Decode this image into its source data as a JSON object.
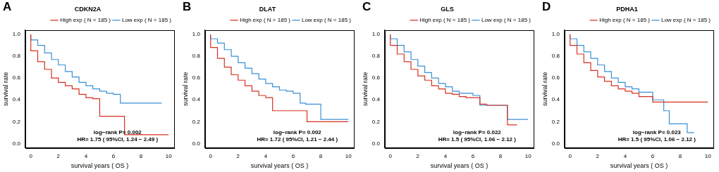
{
  "chart_data": [
    {
      "type": "line",
      "panel": "A",
      "title": "CDKN2A",
      "x_label": "survival years ( OS )",
      "y_label": "survival rate",
      "xlim": [
        -0.4,
        10.4
      ],
      "xticks": [
        0,
        2,
        4,
        6,
        8,
        10
      ],
      "ylim": [
        -0.04,
        1.04
      ],
      "yticks": [
        {
          "value": 0,
          "label": "0.0"
        },
        0.2,
        0.4,
        0.6,
        0.8,
        {
          "value": 1,
          "label": "1.0"
        }
      ],
      "grid": false,
      "legend": "upper right",
      "annotations": [
        "log−rank P= 0.002",
        "HR= 1.75 ( 95%CI, 1.24 − 2.49 )"
      ],
      "series": [
        {
          "name": "High exp ( N = 185 )",
          "color": "#d7301f",
          "x": [
            0,
            0.5,
            1,
            1.5,
            2,
            2.5,
            3,
            3.5,
            4,
            4.5,
            5,
            6.8,
            9.5,
            10
          ],
          "values": [
            1,
            0.85,
            0.75,
            0.68,
            0.6,
            0.56,
            0.53,
            0.5,
            0.45,
            0.42,
            0.41,
            0.25,
            0.08,
            0.08
          ]
        },
        {
          "name": "Low exp ( N = 185 )",
          "color": "#3a8fd6",
          "x": [
            0,
            0.5,
            1,
            1.5,
            2,
            2.5,
            3,
            3.5,
            4,
            4.5,
            5,
            5.5,
            6,
            6.5,
            6.8,
            9.5
          ],
          "values": [
            1,
            0.95,
            0.9,
            0.83,
            0.77,
            0.72,
            0.66,
            0.61,
            0.56,
            0.53,
            0.5,
            0.48,
            0.46,
            0.45,
            0.37,
            0.37
          ]
        }
      ]
    },
    {
      "type": "line",
      "panel": "B",
      "title": "DLAT",
      "x_label": "survival years ( OS )",
      "y_label": "survival rate",
      "xlim": [
        -0.4,
        10.4
      ],
      "xticks": [
        0,
        2,
        4,
        6,
        8,
        10
      ],
      "ylim": [
        -0.04,
        1.04
      ],
      "yticks": [
        {
          "value": 0,
          "label": "0.0"
        },
        0.2,
        0.4,
        0.6,
        0.8,
        {
          "value": 1,
          "label": "1.0"
        }
      ],
      "grid": false,
      "legend": "upper right",
      "annotations": [
        "log−rank P= 0.002",
        "HR= 1.72 ( 95%CI, 1.21 − 2.44 )"
      ],
      "series": [
        {
          "name": "High exp ( N = 185 )",
          "color": "#d7301f",
          "x": [
            0,
            0.5,
            1,
            1.5,
            2,
            2.5,
            3,
            3.5,
            4,
            4.5,
            7,
            8,
            10
          ],
          "values": [
            1,
            0.88,
            0.78,
            0.7,
            0.63,
            0.58,
            0.53,
            0.48,
            0.44,
            0.42,
            0.3,
            0.2,
            0.2
          ]
        },
        {
          "name": "Low exp ( N = 185 )",
          "color": "#3a8fd6",
          "x": [
            0,
            0.5,
            1,
            1.5,
            2,
            2.5,
            3,
            3.5,
            4,
            4.5,
            5,
            5.5,
            6,
            6.5,
            6.9,
            8,
            9,
            10
          ],
          "values": [
            1,
            0.96,
            0.92,
            0.86,
            0.8,
            0.74,
            0.69,
            0.64,
            0.59,
            0.55,
            0.52,
            0.49,
            0.48,
            0.46,
            0.37,
            0.36,
            0.22,
            0.22
          ]
        }
      ]
    },
    {
      "type": "line",
      "panel": "C",
      "title": "GLS",
      "x_label": "survival years ( OS )",
      "y_label": "survival rate",
      "xlim": [
        -0.4,
        10.4
      ],
      "xticks": [
        0,
        2,
        4,
        6,
        8,
        10
      ],
      "ylim": [
        -0.04,
        1.04
      ],
      "yticks": [
        {
          "value": 0,
          "label": "0.0"
        },
        0.2,
        0.4,
        0.6,
        0.8,
        {
          "value": 1,
          "label": "1.0"
        }
      ],
      "grid": false,
      "legend": "upper right",
      "annotations": [
        "log−rank P= 0.022",
        "HR= 1.5 ( 95%CI, 1.06 − 2.12 )"
      ],
      "series": [
        {
          "name": "High exp ( N = 185 )",
          "color": "#d7301f",
          "x": [
            0,
            0.5,
            1,
            1.5,
            2,
            2.5,
            3,
            3.5,
            4,
            4.5,
            5,
            5.5,
            6.5,
            7,
            8.5,
            9,
            9.2
          ],
          "values": [
            1,
            0.9,
            0.82,
            0.75,
            0.68,
            0.62,
            0.58,
            0.53,
            0.5,
            0.46,
            0.45,
            0.43,
            0.42,
            0.36,
            0.35,
            0.17,
            0.17
          ]
        },
        {
          "name": "Low exp ( N = 185 )",
          "color": "#3a8fd6",
          "x": [
            0,
            0.5,
            1,
            1.5,
            2,
            2.5,
            3,
            3.5,
            4,
            4.5,
            5,
            6,
            6.5,
            7,
            8.5,
            9.3,
            10
          ],
          "values": [
            1,
            0.96,
            0.9,
            0.84,
            0.77,
            0.71,
            0.65,
            0.6,
            0.55,
            0.52,
            0.48,
            0.46,
            0.44,
            0.35,
            0.35,
            0.22,
            0.22
          ]
        }
      ]
    },
    {
      "type": "line",
      "panel": "D",
      "title": "PDHA1",
      "x_label": "survival years ( OS )",
      "y_label": "survival rate",
      "xlim": [
        -0.4,
        10.4
      ],
      "xticks": [
        0,
        2,
        4,
        6,
        8,
        10
      ],
      "ylim": [
        -0.04,
        1.04
      ],
      "yticks": [
        {
          "value": 0,
          "label": "0.0"
        },
        0.2,
        0.4,
        0.6,
        0.8,
        {
          "value": 1,
          "label": "1.0"
        }
      ],
      "grid": false,
      "legend": "upper right",
      "annotations": [
        "log−rank P= 0.023",
        "HR= 1.5 ( 95%CI, 1.06 − 2.12 )"
      ],
      "series": [
        {
          "name": "High exp ( N = 185 )",
          "color": "#d7301f",
          "x": [
            0,
            0.5,
            1,
            1.5,
            2,
            2.5,
            3,
            3.5,
            4,
            4.5,
            5,
            6,
            7,
            10
          ],
          "values": [
            1,
            0.9,
            0.82,
            0.74,
            0.67,
            0.61,
            0.57,
            0.53,
            0.5,
            0.48,
            0.46,
            0.43,
            0.38,
            0.38
          ]
        },
        {
          "name": "Low exp ( N = 185 )",
          "color": "#3a8fd6",
          "x": [
            0,
            0.5,
            1,
            1.5,
            2,
            2.5,
            3,
            3.5,
            4,
            4.5,
            5,
            6,
            6.8,
            7.2,
            8.5,
            9
          ],
          "values": [
            1,
            0.96,
            0.9,
            0.84,
            0.78,
            0.72,
            0.66,
            0.6,
            0.56,
            0.52,
            0.5,
            0.47,
            0.4,
            0.3,
            0.18,
            0.1
          ]
        }
      ]
    }
  ]
}
